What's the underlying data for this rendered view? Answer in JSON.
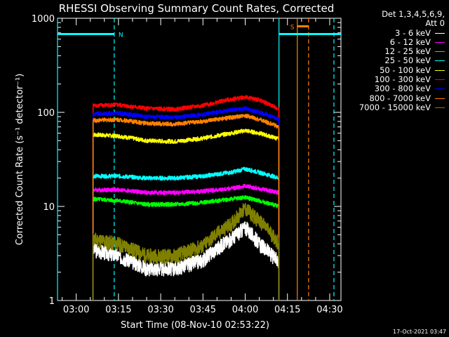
{
  "chart_data": {
    "type": "line",
    "title": "RHESSI Observing Summary Count Rates, Corrected",
    "xlabel": "Start Time (08-Nov-10 02:53:22)",
    "ylabel": "Corrected Count Rate (s⁻¹ detector⁻¹)",
    "yscale": "log",
    "ylim": [
      1,
      1000
    ],
    "yticks": [
      1,
      10,
      100,
      1000
    ],
    "ytick_labels": [
      "1",
      "10",
      "100",
      "1000"
    ],
    "xlim": [
      "02:53:22",
      "04:34:00"
    ],
    "xticks": [
      "03:00",
      "03:15",
      "03:30",
      "03:45",
      "04:00",
      "04:15",
      "04:30"
    ],
    "data_window": [
      "03:06",
      "04:12"
    ],
    "legend": {
      "header": [
        "Det 1,3,4,5,6,9,",
        "Att 0"
      ],
      "placement": "right-outside"
    },
    "series": [
      {
        "name": "3 - 6 keV",
        "color": "#ffffff",
        "x": [
          "03:06",
          "03:15",
          "03:25",
          "03:35",
          "03:45",
          "03:55",
          "04:00",
          "04:05",
          "04:12"
        ],
        "values": [
          3.5,
          3.0,
          2.2,
          2.2,
          2.7,
          4.5,
          6.0,
          4.0,
          2.5
        ]
      },
      {
        "name": "6 - 12 keV",
        "color": "#ff00ff",
        "x": [
          "03:06",
          "03:15",
          "03:25",
          "03:35",
          "03:45",
          "03:55",
          "04:00",
          "04:05",
          "04:12"
        ],
        "values": [
          15,
          15,
          14,
          14,
          14.5,
          15.5,
          16.5,
          15.5,
          14
        ]
      },
      {
        "name": "12 - 25 keV",
        "color": "#00ff00",
        "x": [
          "03:06",
          "03:15",
          "03:25",
          "03:35",
          "03:45",
          "03:55",
          "04:00",
          "04:05",
          "04:12"
        ],
        "values": [
          12,
          11.5,
          10.5,
          10.5,
          11,
          12,
          12.5,
          11.5,
          10
        ]
      },
      {
        "name": "25 - 50 keV",
        "color": "#00ffff",
        "x": [
          "03:06",
          "03:15",
          "03:25",
          "03:35",
          "03:45",
          "03:55",
          "04:00",
          "04:05",
          "04:12"
        ],
        "values": [
          21,
          21,
          20,
          20,
          21,
          23,
          25,
          23,
          20
        ]
      },
      {
        "name": "50 - 100 keV",
        "color": "#ffff00",
        "x": [
          "03:06",
          "03:15",
          "03:25",
          "03:35",
          "03:45",
          "03:55",
          "04:00",
          "04:05",
          "04:12"
        ],
        "values": [
          58,
          56,
          50,
          49,
          53,
          60,
          64,
          60,
          52
        ]
      },
      {
        "name": "100 - 300 keV",
        "color": "#ff0000",
        "x": [
          "03:06",
          "03:15",
          "03:25",
          "03:35",
          "03:45",
          "03:55",
          "04:00",
          "04:05",
          "04:12"
        ],
        "values": [
          118,
          120,
          110,
          108,
          118,
          138,
          145,
          135,
          108
        ]
      },
      {
        "name": "300 - 800 keV",
        "color": "#0000ff",
        "x": [
          "03:06",
          "03:15",
          "03:25",
          "03:35",
          "03:45",
          "03:55",
          "04:00",
          "04:05",
          "04:12"
        ],
        "values": [
          96,
          98,
          90,
          88,
          95,
          106,
          110,
          100,
          85
        ]
      },
      {
        "name": "800 - 7000 keV",
        "color": "#ff8000",
        "x": [
          "03:06",
          "03:15",
          "03:25",
          "03:35",
          "03:45",
          "03:55",
          "04:00",
          "04:05",
          "04:12"
        ],
        "values": [
          82,
          84,
          76,
          75,
          80,
          88,
          92,
          84,
          70
        ]
      },
      {
        "name": "7000 - 15000 keV",
        "color": "#808000",
        "x": [
          "03:06",
          "03:15",
          "03:25",
          "03:35",
          "03:45",
          "03:55",
          "04:00",
          "04:05",
          "04:12"
        ],
        "values": [
          4.5,
          4.0,
          3.0,
          3.0,
          3.8,
          6.5,
          9.5,
          7.0,
          4.0
        ]
      }
    ],
    "annotations": [
      {
        "label": "N",
        "color": "#00ffff",
        "type": "night-bar",
        "start": "02:53:22",
        "end": "03:13:30",
        "level": 680
      },
      {
        "label": "",
        "color": "#00ffff",
        "type": "night-bar",
        "start": "04:12:00",
        "end": "04:34:00",
        "level": 680
      },
      {
        "label": "S",
        "color": "#ff8000",
        "type": "saa-bar",
        "start": "04:18:30",
        "end": "04:22:30",
        "level": 820
      }
    ],
    "vlines": [
      {
        "time": "02:53:22",
        "color": "#00ffff",
        "style": "solid"
      },
      {
        "time": "03:13:30",
        "color": "#00ffff",
        "style": "dashed"
      },
      {
        "time": "04:12:00",
        "color": "#00ffff",
        "style": "solid"
      },
      {
        "time": "04:31:30",
        "color": "#00ffff",
        "style": "dashed"
      },
      {
        "time": "04:18:30",
        "color": "#ff8000",
        "style": "solid"
      },
      {
        "time": "04:22:30",
        "color": "#ff8000",
        "style": "dashed"
      }
    ],
    "grid": false
  },
  "footer": {
    "timestamp": "17-Oct-2021 03:47"
  }
}
